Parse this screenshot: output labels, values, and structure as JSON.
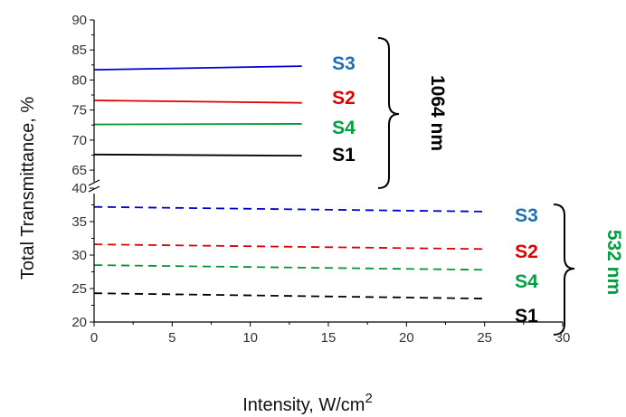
{
  "chart_data": {
    "type": "line",
    "title": "",
    "xlabel": "Intensity, W/cm",
    "xlabel_superscript": "2",
    "ylabel": "Total Transmittance, %",
    "xlim": [
      0,
      30
    ],
    "x_ticks": [
      "0",
      "5",
      "10",
      "15",
      "20",
      "25",
      "30"
    ],
    "y_axis_break": true,
    "upper_panel": {
      "ylim": [
        62,
        90
      ],
      "y_ticks": [
        "65",
        "70",
        "75",
        "80",
        "85",
        "90"
      ],
      "group_label": "1064 nm",
      "group_color": "#000000",
      "line_style": "solid",
      "series": [
        {
          "name": "S3",
          "color": "#0000cc",
          "label_color": "#1f6fb5",
          "x": [
            0,
            13.3
          ],
          "y": [
            81.7,
            82.3
          ]
        },
        {
          "name": "S2",
          "color": "#e00000",
          "label_color": "#e00000",
          "x": [
            0,
            13.3
          ],
          "y": [
            76.6,
            76.2
          ]
        },
        {
          "name": "S4",
          "color": "#009933",
          "label_color": "#00a040",
          "x": [
            0,
            13.3
          ],
          "y": [
            72.6,
            72.7
          ]
        },
        {
          "name": "S1",
          "color": "#000000",
          "label_color": "#000000",
          "x": [
            0,
            13.3
          ],
          "y": [
            67.6,
            67.4
          ]
        }
      ]
    },
    "lower_panel": {
      "ylim": [
        20,
        40
      ],
      "y_ticks": [
        "20",
        "25",
        "30",
        "35",
        "40"
      ],
      "group_label": "532 nm",
      "group_color": "#00a040",
      "line_style": "dashed",
      "series": [
        {
          "name": "S3",
          "color": "#0000cc",
          "label_color": "#1f6fb5",
          "x": [
            0,
            25
          ],
          "y": [
            37.2,
            36.5
          ]
        },
        {
          "name": "S2",
          "color": "#e00000",
          "label_color": "#e00000",
          "x": [
            0,
            25
          ],
          "y": [
            31.6,
            30.9
          ]
        },
        {
          "name": "S4",
          "color": "#009933",
          "label_color": "#00a040",
          "x": [
            0,
            25
          ],
          "y": [
            28.5,
            27.8
          ]
        },
        {
          "name": "S1",
          "color": "#000000",
          "label_color": "#000000",
          "x": [
            0,
            25
          ],
          "y": [
            24.3,
            23.5
          ]
        }
      ]
    }
  }
}
